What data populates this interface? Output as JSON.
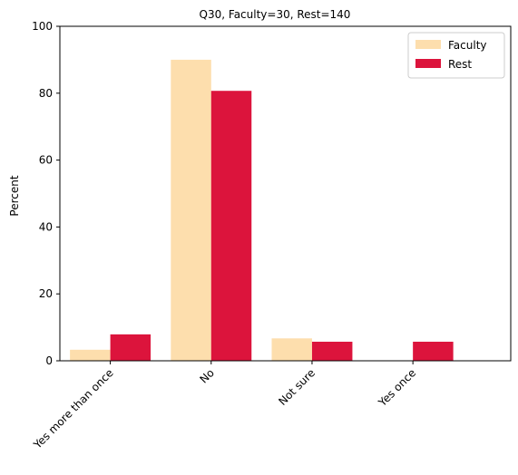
{
  "chart_data": {
    "type": "bar",
    "title": "Q30, Faculty=30, Rest=140",
    "xlabel": "",
    "ylabel": "Percent",
    "ylim": [
      0,
      100
    ],
    "yticks": [
      0,
      20,
      40,
      60,
      80,
      100
    ],
    "categories": [
      "Yes more than once",
      "No",
      "Not sure",
      "Yes once"
    ],
    "series": [
      {
        "name": "Faculty",
        "color": "#FDDEAD",
        "values": [
          3.3,
          90.0,
          6.7,
          0.0
        ]
      },
      {
        "name": "Rest",
        "color": "#DC143C",
        "values": [
          7.9,
          80.7,
          5.7,
          5.7
        ]
      }
    ],
    "legend": "top-right",
    "grid": false
  }
}
